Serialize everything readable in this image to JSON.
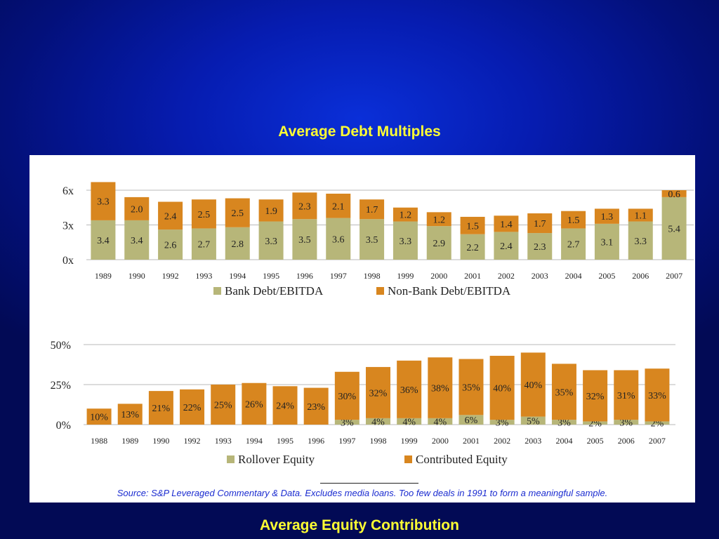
{
  "titles": {
    "top": "Average Debt Multiples",
    "bottom": "Average Equity Contribution"
  },
  "source_note": "Source: S&P Leveraged Commentary & Data.  Excludes media loans.  Too few deals in 1991 to form a meaningful sample.",
  "colors": {
    "tan": "#b7b679",
    "orange": "#d8861f",
    "grid": "#b9b9b9"
  },
  "chart_data": [
    {
      "type": "bar",
      "stacked": true,
      "categories": [
        "1989",
        "1990",
        "1992",
        "1993",
        "1994",
        "1995",
        "1996",
        "1997",
        "1998",
        "1999",
        "2000",
        "2001",
        "2002",
        "2003",
        "2004",
        "2005",
        "2006",
        "2007"
      ],
      "series": [
        {
          "name": "Bank Debt/EBITDA",
          "values": [
            3.4,
            3.4,
            2.6,
            2.7,
            2.8,
            3.3,
            3.5,
            3.6,
            3.5,
            3.3,
            2.9,
            2.2,
            2.4,
            2.3,
            2.7,
            3.1,
            3.3,
            5.4
          ],
          "labels": [
            "3.4",
            "3.4",
            "2.6",
            "2.7",
            "2.8",
            "3.3",
            "3.5",
            "3.6",
            "3.5",
            "3.3",
            "2.9",
            "2.2",
            "2.4",
            "2.3",
            "2.7",
            "3.1",
            "3.3",
            "5.4"
          ]
        },
        {
          "name": "Non-Bank Debt/EBITDA",
          "values": [
            3.3,
            2.0,
            2.4,
            2.5,
            2.5,
            1.9,
            2.3,
            2.1,
            1.7,
            1.2,
            1.2,
            1.5,
            1.4,
            1.7,
            1.5,
            1.3,
            1.1,
            0.6
          ],
          "labels": [
            "3.3",
            "2.0",
            "2.4",
            "2.5",
            "2.5",
            "1.9",
            "2.3",
            "2.1",
            "1.7",
            "1.2",
            "1.2",
            "1.5",
            "1.4",
            "1.7",
            "1.5",
            "1.3",
            "1.1",
            "0.6"
          ]
        }
      ],
      "yticks": [
        "0x",
        "3x",
        "6x"
      ],
      "ylim": [
        0,
        6
      ],
      "grid": true,
      "legend": "bottom"
    },
    {
      "type": "bar",
      "stacked": true,
      "categories": [
        "1988",
        "1989",
        "1990",
        "1992",
        "1993",
        "1994",
        "1995",
        "1996",
        "1997",
        "1998",
        "1999",
        "2000",
        "2001",
        "2002",
        "2003",
        "2004",
        "2005",
        "2006",
        "2007"
      ],
      "series": [
        {
          "name": "Rollover Equity",
          "values": [
            0,
            0,
            0,
            0,
            0,
            0,
            0,
            0,
            3,
            4,
            4,
            4,
            6,
            3,
            5,
            3,
            2,
            3,
            2
          ],
          "labels": [
            "",
            "",
            "",
            "",
            "",
            "",
            "",
            "",
            "3%",
            "4%",
            "4%",
            "4%",
            "6%",
            "3%",
            "5%",
            "3%",
            "2%",
            "3%",
            "2%"
          ]
        },
        {
          "name": "Contributed Equity",
          "values": [
            10,
            13,
            21,
            22,
            25,
            26,
            24,
            23,
            30,
            32,
            36,
            38,
            35,
            40,
            40,
            35,
            32,
            31,
            33
          ],
          "labels": [
            "10%",
            "13%",
            "21%",
            "22%",
            "25%",
            "26%",
            "24%",
            "23%",
            "30%",
            "32%",
            "36%",
            "38%",
            "35%",
            "40%",
            "40%",
            "35%",
            "32%",
            "31%",
            "33%"
          ]
        }
      ],
      "yticks": [
        "0%",
        "25%",
        "50%"
      ],
      "ylim": [
        0,
        50
      ],
      "grid": true,
      "legend": "bottom"
    }
  ]
}
